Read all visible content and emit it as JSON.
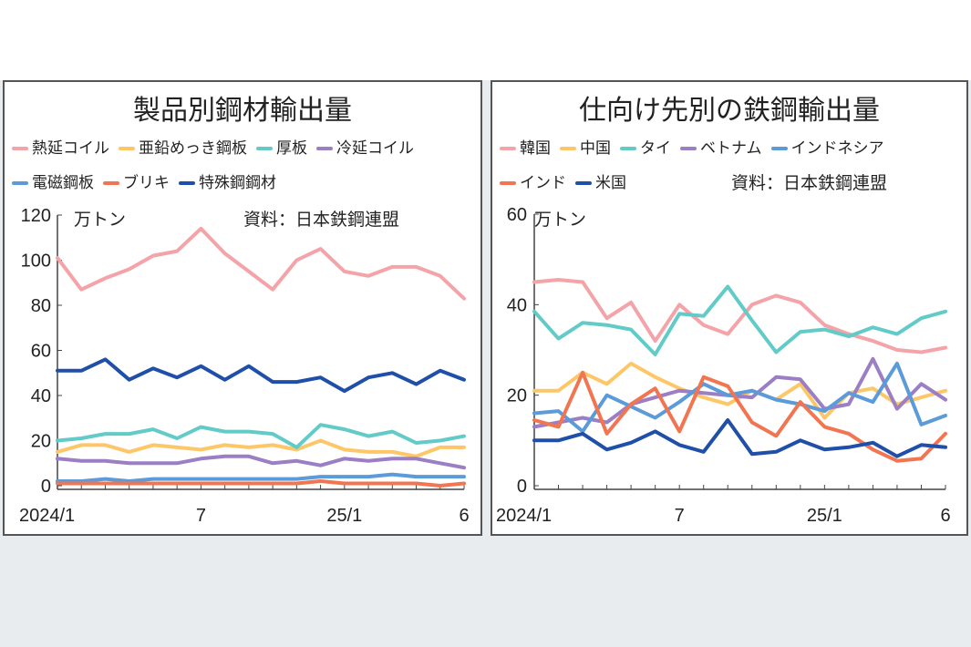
{
  "chart_data": [
    {
      "type": "line",
      "title": "製品別鋼材輸出量",
      "unit": "万トン",
      "source": "資料：日本鉄鋼連盟",
      "ylim": [
        0,
        120
      ],
      "yticks": [
        0,
        20,
        40,
        60,
        80,
        100,
        120
      ],
      "xtick_labels": [
        {
          "i": 0,
          "label": "2024/1"
        },
        {
          "i": 6,
          "label": "7"
        },
        {
          "i": 12,
          "label": "25/1"
        },
        {
          "i": 17,
          "label": "6"
        }
      ],
      "series": [
        {
          "name": "熱延コイル",
          "color": "#f4a3a8",
          "values": [
            101,
            87,
            92,
            96,
            102,
            104,
            114,
            103,
            95,
            87,
            100,
            105,
            95,
            93,
            97,
            97,
            93,
            83
          ]
        },
        {
          "name": "亜鉛めっき鋼板",
          "color": "#fdc768",
          "values": [
            15,
            18,
            18,
            15,
            18,
            17,
            16,
            18,
            17,
            18,
            16,
            20,
            16,
            15,
            15,
            13,
            17,
            17
          ]
        },
        {
          "name": "厚板",
          "color": "#62cbc8",
          "values": [
            20,
            21,
            23,
            23,
            25,
            21,
            26,
            24,
            24,
            23,
            17,
            27,
            25,
            22,
            24,
            19,
            20,
            22
          ]
        },
        {
          "name": "冷延コイル",
          "color": "#9b7ec4",
          "values": [
            12,
            11,
            11,
            10,
            10,
            10,
            12,
            13,
            13,
            10,
            11,
            9,
            12,
            11,
            12,
            12,
            10,
            8
          ]
        },
        {
          "name": "電磁鋼板",
          "color": "#5b9bd9",
          "values": [
            2,
            2,
            3,
            2,
            3,
            3,
            3,
            3,
            3,
            3,
            3,
            4,
            4,
            4,
            5,
            4,
            4,
            4
          ]
        },
        {
          "name": "ブリキ",
          "color": "#f27552",
          "values": [
            1,
            1,
            1,
            1,
            1,
            1,
            1,
            1,
            1,
            1,
            1,
            2,
            1,
            1,
            1,
            1,
            0,
            1
          ]
        },
        {
          "name": "特殊鋼鋼材",
          "color": "#1f4fa8",
          "values": [
            51,
            51,
            56,
            47,
            52,
            48,
            53,
            47,
            53,
            46,
            46,
            48,
            42,
            48,
            50,
            45,
            51,
            47
          ]
        }
      ]
    },
    {
      "type": "line",
      "title": "仕向け先別の鉄鋼輸出量",
      "unit": "万トン",
      "source": "資料：日本鉄鋼連盟",
      "ylim": [
        0,
        60
      ],
      "yticks": [
        0,
        20,
        40,
        60
      ],
      "xtick_labels": [
        {
          "i": 0,
          "label": "2024/1"
        },
        {
          "i": 6,
          "label": "7"
        },
        {
          "i": 12,
          "label": "25/1"
        },
        {
          "i": 17,
          "label": "6"
        }
      ],
      "series": [
        {
          "name": "韓国",
          "color": "#f4a3a8",
          "values": [
            45,
            45.5,
            45,
            37,
            40.5,
            32,
            40,
            35.5,
            33.5,
            40,
            42,
            40.5,
            35.5,
            33.5,
            32,
            30,
            29.5,
            30.5
          ]
        },
        {
          "name": "中国",
          "color": "#fdc768",
          "values": [
            21,
            21,
            25,
            22.5,
            27,
            24,
            21.5,
            19.5,
            18,
            21,
            19,
            22.5,
            15,
            20.5,
            21.5,
            18,
            19.5,
            21
          ]
        },
        {
          "name": "タイ",
          "color": "#62cbc8",
          "values": [
            38.5,
            32.5,
            36,
            35.5,
            34.5,
            29,
            38,
            37.5,
            44,
            36.5,
            29.5,
            34,
            34.5,
            33,
            35,
            33.5,
            37,
            38.5
          ]
        },
        {
          "name": "ベトナム",
          "color": "#9b7ec4",
          "values": [
            13,
            14,
            15,
            14,
            18,
            19.5,
            21,
            20.5,
            20,
            19.5,
            24,
            23.5,
            17,
            18,
            28,
            17,
            22.5,
            19
          ]
        },
        {
          "name": "インドネシア",
          "color": "#5b9bd9",
          "values": [
            16,
            16.5,
            12,
            20,
            17.5,
            15,
            18.5,
            22.5,
            20,
            21,
            19,
            18,
            16.5,
            20.5,
            18.5,
            27,
            13.5,
            15.5
          ]
        },
        {
          "name": "インド",
          "color": "#f27552",
          "values": [
            14.5,
            13,
            25,
            11.5,
            18,
            21.5,
            12,
            24,
            22,
            14,
            11,
            18.5,
            13,
            11.5,
            8,
            5.5,
            6,
            11.5
          ]
        },
        {
          "name": "米国",
          "color": "#1f4fa8",
          "values": [
            10,
            10,
            11.5,
            8,
            9.5,
            12,
            9,
            7.5,
            14.5,
            7,
            7.5,
            10,
            8,
            8.5,
            9.5,
            6.5,
            9,
            8.5
          ]
        }
      ]
    }
  ]
}
